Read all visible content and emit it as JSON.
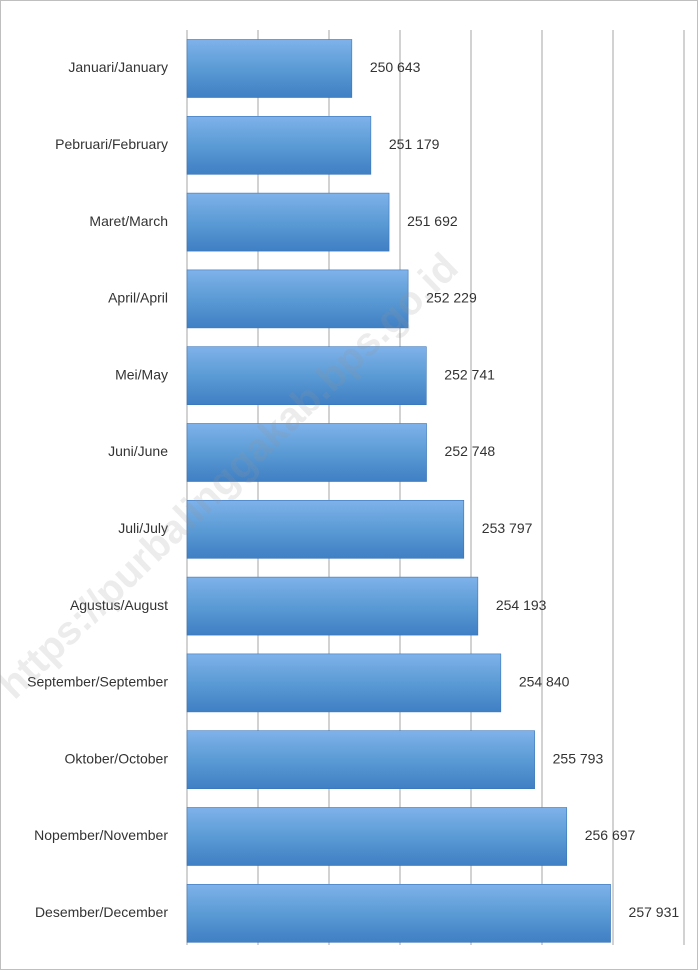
{
  "chart_data": {
    "type": "barh",
    "categories": [
      "Januari/January",
      "Pebruari/February",
      "Maret/March",
      "April/April",
      "Mei/May",
      "Juni/June",
      "Juli/July",
      "Agustus/August",
      "September/September",
      "Oktober/October",
      "Nopember/November",
      "Desember/December"
    ],
    "values": [
      250643,
      251179,
      251692,
      252229,
      252741,
      252748,
      253797,
      254193,
      254840,
      255793,
      256697,
      257931
    ],
    "value_labels": [
      "250 643",
      "251 179",
      "251 692",
      "252 229",
      "252 741",
      "252 748",
      "253 797",
      "254 193",
      "254 840",
      "255 793",
      "256 697",
      "257 931"
    ],
    "color": "#5b9bd5",
    "xlim": [
      246000,
      260000
    ],
    "xticks": [
      246000,
      248000,
      250000,
      252000,
      254000,
      256000,
      258000,
      260000
    ],
    "grid": true,
    "watermark": "https://purbalinggakab.bps.go.id"
  }
}
